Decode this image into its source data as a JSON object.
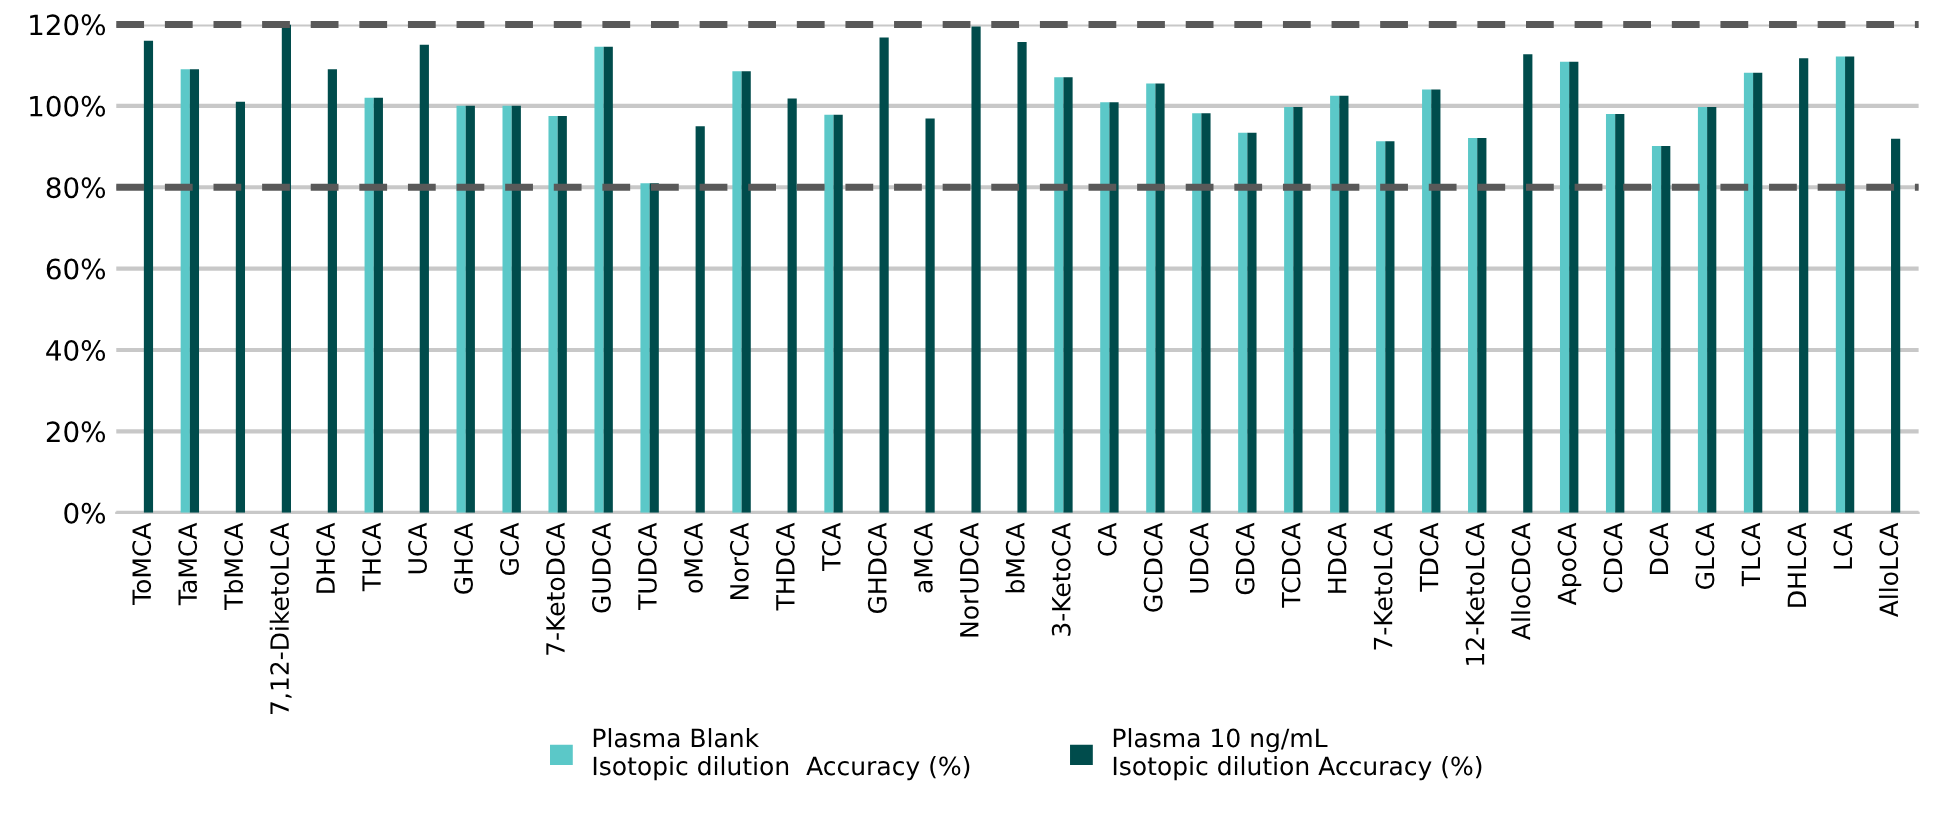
{
  "chart_data": {
    "type": "bar",
    "categories": [
      "ToMCA",
      "TaMCA",
      "TbMCA",
      "7,12-DiketoLCA",
      "DHCA",
      "THCA",
      "UCA",
      "GHCA",
      "GCA",
      "7-KetoDCA",
      "GUDCA",
      "TUDCA",
      "oMCA",
      "NorCA",
      "THDCA",
      "TCA",
      "GHDCA",
      "aMCA",
      "NorUDCA",
      "bMCA",
      "3-KetoCA",
      "CA",
      "GCDCA",
      "UDCA",
      "GDCA",
      "TCDCA",
      "HDCA",
      "7-KetoLCA",
      "TDCA",
      "12-KetoLCA",
      "AlloCDCA",
      "ApoCA",
      "CDCA",
      "DCA",
      "GLCA",
      "TLCA",
      "DHLCA",
      "LCA",
      "AlloLCA"
    ],
    "series": [
      {
        "name": "Plasma Blank\nIsotopic dilution  Accuracy (%)",
        "color": "#5bc8c8",
        "values": [
          null,
          109,
          null,
          null,
          null,
          102,
          null,
          100,
          100,
          97.5,
          114.5,
          81,
          null,
          108.5,
          null,
          97.8,
          null,
          null,
          null,
          null,
          107,
          100.9,
          105.5,
          98.2,
          93.4,
          99.7,
          102.5,
          91.3,
          104,
          92.1,
          null,
          110.8,
          98,
          90.1,
          99.7,
          108.1,
          null,
          112.1,
          null
        ]
      },
      {
        "name": "Plasma 10 ng/mL\nIsotopic dilution Accuracy (%)",
        "color": "#004c4c",
        "values": [
          116,
          109,
          101,
          120,
          109,
          102,
          115,
          100,
          100,
          97.5,
          114.5,
          81,
          95,
          108.5,
          101.8,
          97.8,
          116.8,
          96.9,
          119.5,
          115.7,
          107,
          100.9,
          105.5,
          98.2,
          93.4,
          99.7,
          102.5,
          91.3,
          104,
          92.1,
          112.7,
          110.8,
          98,
          90.1,
          99.7,
          108.1,
          111.7,
          112.1,
          91.9
        ]
      }
    ],
    "ylim": [
      0,
      120
    ],
    "yticks": [
      {
        "value": 0,
        "label": "0%"
      },
      {
        "value": 20,
        "label": "20%"
      },
      {
        "value": 40,
        "label": "40%"
      },
      {
        "value": 60,
        "label": "60%"
      },
      {
        "value": 80,
        "label": "80%"
      },
      {
        "value": 100,
        "label": "100%"
      },
      {
        "value": 120,
        "label": "120%"
      }
    ],
    "grid": "y",
    "legend": "bottom",
    "ref_lines": [
      {
        "axis": "y",
        "value": 80,
        "color": "#595959",
        "line_style": "dashed"
      },
      {
        "axis": "y",
        "value": 120,
        "color": "#595959",
        "line_style": "dashed"
      }
    ]
  }
}
